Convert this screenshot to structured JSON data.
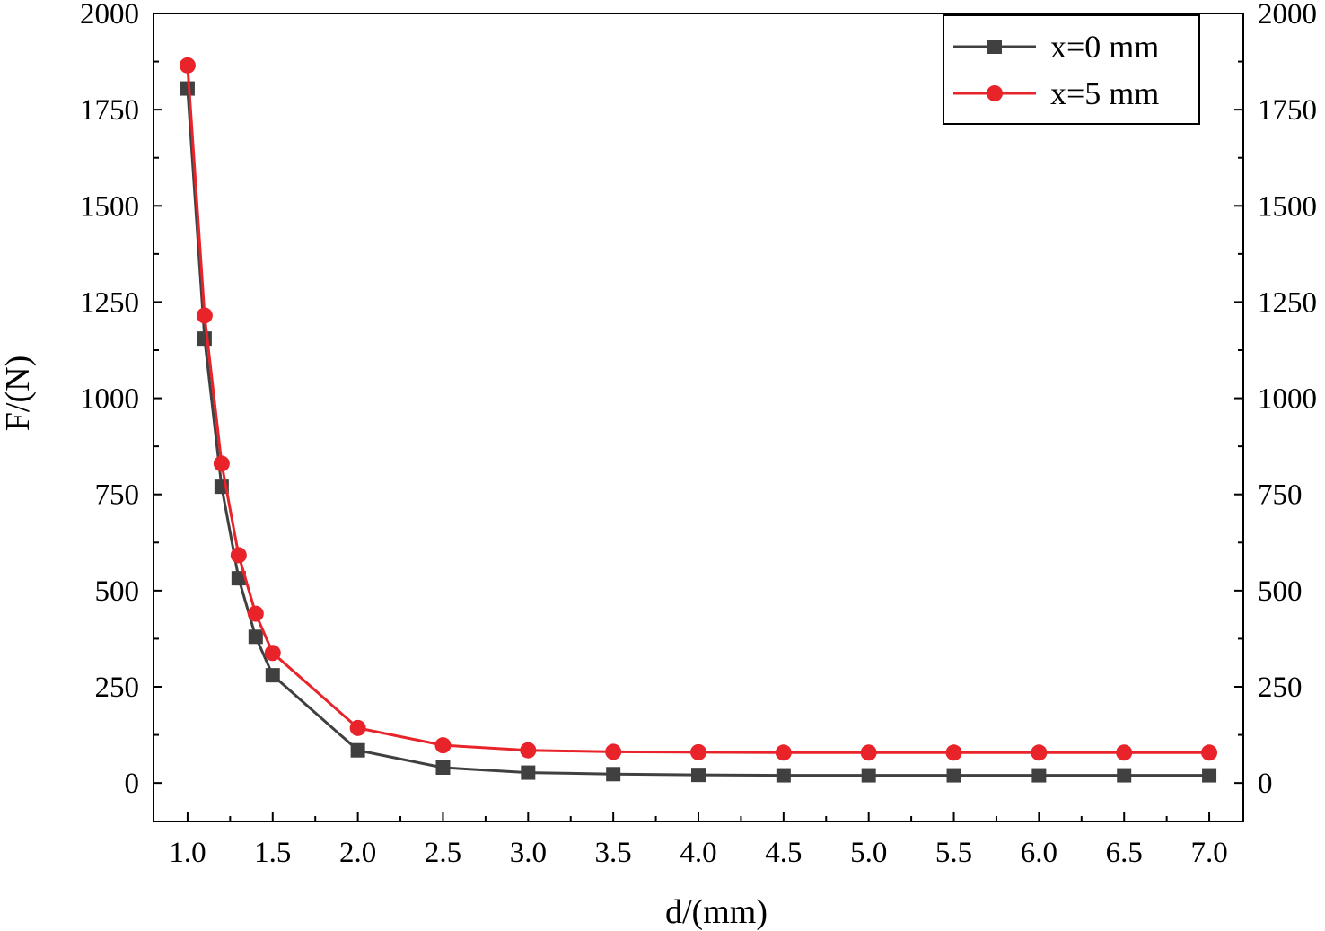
{
  "chart_data": {
    "type": "line",
    "xlabel": "d/(mm)",
    "ylabel": "F/(N)",
    "xlim": [
      0.8,
      7.2
    ],
    "ylim": [
      -100,
      2000
    ],
    "xticks": [
      "1.0",
      "1.5",
      "2.0",
      "2.5",
      "3.0",
      "3.5",
      "4.0",
      "4.5",
      "5.0",
      "5.5",
      "6.0",
      "6.5",
      "7.0"
    ],
    "yticks": [
      "0",
      "250",
      "500",
      "750",
      "1000",
      "1250",
      "1500",
      "1750",
      "2000"
    ],
    "right_yticks": [
      "0",
      "250",
      "500",
      "750",
      "1000",
      "1250",
      "1500",
      "1750",
      "2000"
    ],
    "grid": false,
    "legend_position": "top-right",
    "series": [
      {
        "name": "x=0 mm",
        "color": "#404040",
        "marker": "square",
        "x": [
          1.0,
          1.1,
          1.2,
          1.3,
          1.4,
          1.5,
          2.0,
          2.5,
          3.0,
          3.5,
          4.0,
          4.5,
          5.0,
          5.5,
          6.0,
          6.5,
          7.0
        ],
        "y": [
          1805,
          1155,
          770,
          532,
          380,
          280,
          85,
          40,
          27,
          23,
          21,
          20,
          20,
          20,
          20,
          20,
          20
        ]
      },
      {
        "name": "x=5 mm",
        "color": "#e8242a",
        "marker": "circle",
        "x": [
          1.0,
          1.1,
          1.2,
          1.3,
          1.4,
          1.5,
          2.0,
          2.5,
          3.0,
          3.5,
          4.0,
          4.5,
          5.0,
          5.5,
          6.0,
          6.5,
          7.0
        ],
        "y": [
          1865,
          1215,
          830,
          592,
          440,
          338,
          143,
          98,
          85,
          81,
          80,
          79,
          79,
          79,
          79,
          79,
          79
        ]
      }
    ]
  }
}
